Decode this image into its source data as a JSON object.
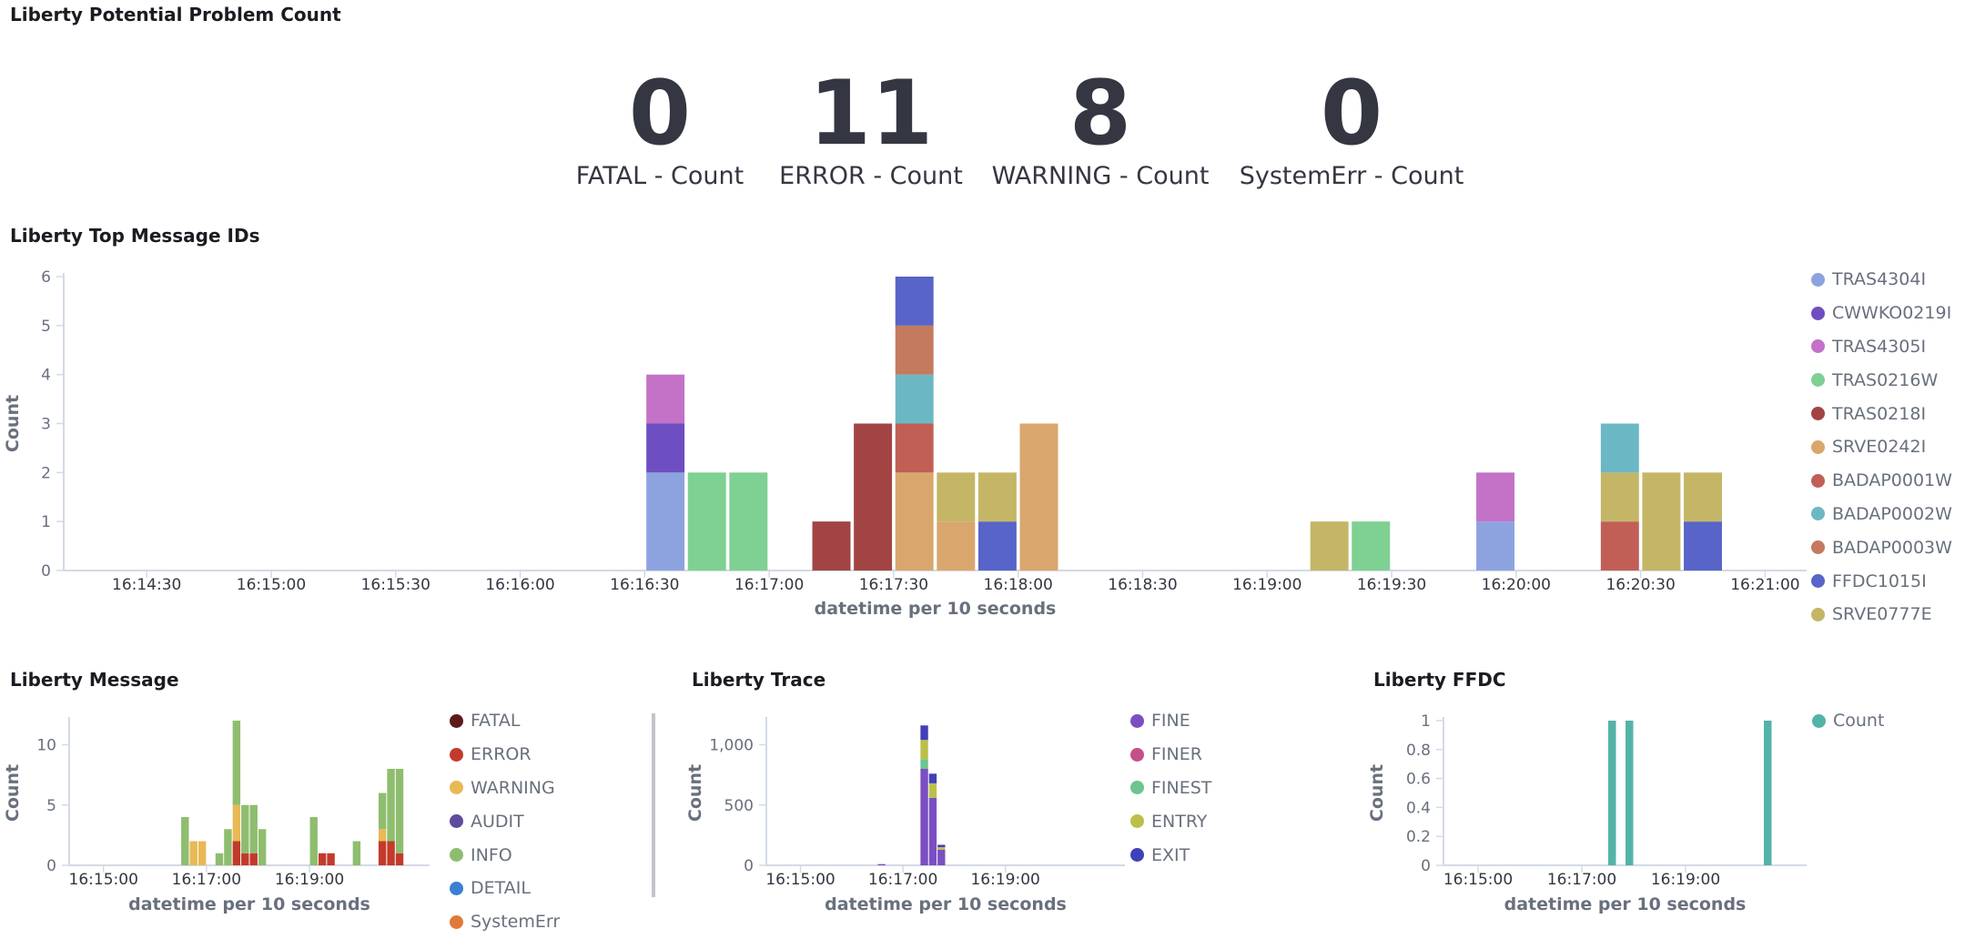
{
  "dashboard": {
    "problem_panel": {
      "title": "Liberty Potential Problem Count",
      "metrics": [
        {
          "value": "0",
          "label": "FATAL - Count"
        },
        {
          "value": "11",
          "label": "ERROR - Count"
        },
        {
          "value": "8",
          "label": "WARNING - Count"
        },
        {
          "value": "0",
          "label": "SystemErr - Count"
        }
      ]
    },
    "top_panel": {
      "title": "Liberty Top Message IDs",
      "legend": [
        {
          "name": "TRAS4304I",
          "color": "#8da3e0"
        },
        {
          "name": "CWWKO0219I",
          "color": "#6e4fc2"
        },
        {
          "name": "TRAS4305I",
          "color": "#c372c8"
        },
        {
          "name": "TRAS0216W",
          "color": "#7fd093"
        },
        {
          "name": "TRAS0218I",
          "color": "#a24443"
        },
        {
          "name": "SRVE0242I",
          "color": "#d9a66d"
        },
        {
          "name": "BADAP0001W",
          "color": "#c15f56"
        },
        {
          "name": "BADAP0002W",
          "color": "#6bb8c4"
        },
        {
          "name": "BADAP0003W",
          "color": "#c47a5e"
        },
        {
          "name": "FFDC1015I",
          "color": "#5864c7"
        },
        {
          "name": "SRVE0777E",
          "color": "#c4b666"
        }
      ]
    },
    "message_panel": {
      "title": "Liberty Message",
      "legend": [
        {
          "name": "FATAL",
          "color": "#5c1a1a"
        },
        {
          "name": "ERROR",
          "color": "#c23a2b"
        },
        {
          "name": "WARNING",
          "color": "#e8b954"
        },
        {
          "name": "AUDIT",
          "color": "#5e4b9c"
        },
        {
          "name": "INFO",
          "color": "#8fbd6f"
        },
        {
          "name": "DETAIL",
          "color": "#3b7fd1"
        },
        {
          "name": "SystemErr",
          "color": "#e07a3a"
        }
      ]
    },
    "trace_panel": {
      "title": "Liberty Trace",
      "legend": [
        {
          "name": "FINE",
          "color": "#7b4fc2"
        },
        {
          "name": "FINER",
          "color": "#c4508a"
        },
        {
          "name": "FINEST",
          "color": "#6fc48f"
        },
        {
          "name": "ENTRY",
          "color": "#bcc04a"
        },
        {
          "name": "EXIT",
          "color": "#4040b8"
        }
      ]
    },
    "ffdc_panel": {
      "title": "Liberty FFDC",
      "legend": [
        {
          "name": "Count",
          "color": "#54b3a8"
        }
      ]
    }
  },
  "chart_data": [
    {
      "id": "top",
      "type": "bar",
      "stacked": true,
      "xlabel": "datetime per 10 seconds",
      "ylabel": "Count",
      "ylim": [
        0,
        6
      ],
      "yticks": [
        "0",
        "1",
        "2",
        "3",
        "4",
        "5",
        "6"
      ],
      "xticks": [
        "16:14:30",
        "16:15:00",
        "16:15:30",
        "16:16:00",
        "16:16:30",
        "16:17:00",
        "16:17:30",
        "16:18:00",
        "16:18:30",
        "16:19:00",
        "16:19:30",
        "16:20:00",
        "16:20:30",
        "16:21:00"
      ],
      "x_range": [
        "16:14:10",
        "16:21:10"
      ],
      "bar_width_seconds": 10,
      "bars": [
        {
          "x": "16:16:30",
          "stack": [
            {
              "series": "TRAS4304I",
              "value": 2
            },
            {
              "series": "CWWKO0219I",
              "value": 1
            },
            {
              "series": "TRAS4305I",
              "value": 1
            }
          ]
        },
        {
          "x": "16:16:40",
          "stack": [
            {
              "series": "TRAS0216W",
              "value": 2
            }
          ]
        },
        {
          "x": "16:16:50",
          "stack": [
            {
              "series": "TRAS0216W",
              "value": 2
            }
          ]
        },
        {
          "x": "16:17:10",
          "stack": [
            {
              "series": "TRAS0218I",
              "value": 1
            }
          ]
        },
        {
          "x": "16:17:20",
          "stack": [
            {
              "series": "TRAS0218I",
              "value": 3
            }
          ]
        },
        {
          "x": "16:17:30",
          "stack": [
            {
              "series": "SRVE0242I",
              "value": 2
            },
            {
              "series": "BADAP0001W",
              "value": 1
            },
            {
              "series": "BADAP0002W",
              "value": 1
            },
            {
              "series": "BADAP0003W",
              "value": 1
            },
            {
              "series": "FFDC1015I",
              "value": 1
            }
          ]
        },
        {
          "x": "16:17:40",
          "stack": [
            {
              "series": "SRVE0242I",
              "value": 1
            },
            {
              "series": "SRVE0777E",
              "value": 1
            }
          ]
        },
        {
          "x": "16:17:50",
          "stack": [
            {
              "series": "FFDC1015I",
              "value": 1
            },
            {
              "series": "SRVE0777E",
              "value": 1
            }
          ]
        },
        {
          "x": "16:18:00",
          "stack": [
            {
              "series": "SRVE0242I",
              "value": 3
            }
          ]
        },
        {
          "x": "16:19:10",
          "stack": [
            {
              "series": "SRVE0777E",
              "value": 1
            }
          ]
        },
        {
          "x": "16:19:20",
          "stack": [
            {
              "series": "TRAS0216W",
              "value": 1
            }
          ]
        },
        {
          "x": "16:19:50",
          "stack": [
            {
              "series": "TRAS4304I",
              "value": 1
            },
            {
              "series": "TRAS4305I",
              "value": 1
            }
          ]
        },
        {
          "x": "16:20:20",
          "stack": [
            {
              "series": "BADAP0001W",
              "value": 1
            },
            {
              "series": "SRVE0777E",
              "value": 1
            },
            {
              "series": "BADAP0002W",
              "value": 1
            }
          ]
        },
        {
          "x": "16:20:30",
          "stack": [
            {
              "series": "SRVE0777E",
              "value": 2
            }
          ]
        },
        {
          "x": "16:20:40",
          "stack": [
            {
              "series": "FFDC1015I",
              "value": 1
            },
            {
              "series": "SRVE0777E",
              "value": 1
            }
          ]
        }
      ]
    },
    {
      "id": "message",
      "type": "bar",
      "stacked": true,
      "xlabel": "datetime per 10 seconds",
      "ylabel": "Count",
      "ylim": [
        0,
        12
      ],
      "yticks": [
        "0",
        "5",
        "10"
      ],
      "xticks": [
        "16:15:00",
        "16:17:00",
        "16:19:00"
      ],
      "x_range": [
        "16:14:20",
        "16:21:20"
      ],
      "bar_width_seconds": 10,
      "bars": [
        {
          "x": "16:16:30",
          "stack": [
            {
              "series": "INFO",
              "value": 4
            }
          ]
        },
        {
          "x": "16:16:40",
          "stack": [
            {
              "series": "WARNING",
              "value": 2
            }
          ]
        },
        {
          "x": "16:16:50",
          "stack": [
            {
              "series": "WARNING",
              "value": 2
            }
          ]
        },
        {
          "x": "16:17:10",
          "stack": [
            {
              "series": "INFO",
              "value": 1
            }
          ]
        },
        {
          "x": "16:17:20",
          "stack": [
            {
              "series": "INFO",
              "value": 3
            }
          ]
        },
        {
          "x": "16:17:30",
          "stack": [
            {
              "series": "ERROR",
              "value": 2
            },
            {
              "series": "WARNING",
              "value": 3
            },
            {
              "series": "INFO",
              "value": 7
            }
          ]
        },
        {
          "x": "16:17:40",
          "stack": [
            {
              "series": "ERROR",
              "value": 1
            },
            {
              "series": "INFO",
              "value": 4
            }
          ]
        },
        {
          "x": "16:17:50",
          "stack": [
            {
              "series": "ERROR",
              "value": 1
            },
            {
              "series": "INFO",
              "value": 4
            }
          ]
        },
        {
          "x": "16:18:00",
          "stack": [
            {
              "series": "INFO",
              "value": 3
            }
          ]
        },
        {
          "x": "16:19:00",
          "stack": [
            {
              "series": "INFO",
              "value": 4
            }
          ]
        },
        {
          "x": "16:19:10",
          "stack": [
            {
              "series": "ERROR",
              "value": 1
            }
          ]
        },
        {
          "x": "16:19:20",
          "stack": [
            {
              "series": "ERROR",
              "value": 1
            }
          ]
        },
        {
          "x": "16:19:50",
          "stack": [
            {
              "series": "INFO",
              "value": 2
            }
          ]
        },
        {
          "x": "16:20:20",
          "stack": [
            {
              "series": "ERROR",
              "value": 2
            },
            {
              "series": "WARNING",
              "value": 1
            },
            {
              "series": "INFO",
              "value": 3
            }
          ]
        },
        {
          "x": "16:20:30",
          "stack": [
            {
              "series": "ERROR",
              "value": 2
            },
            {
              "series": "INFO",
              "value": 6
            }
          ]
        },
        {
          "x": "16:20:40",
          "stack": [
            {
              "series": "ERROR",
              "value": 1
            },
            {
              "series": "INFO",
              "value": 7
            }
          ]
        }
      ]
    },
    {
      "id": "trace",
      "type": "bar",
      "stacked": true,
      "xlabel": "datetime per 10 seconds",
      "ylabel": "Count",
      "ylim": [
        0,
        1200
      ],
      "yticks": [
        "0",
        "500",
        "1,000"
      ],
      "xticks": [
        "16:15:00",
        "16:17:00",
        "16:19:00"
      ],
      "x_range": [
        "16:14:20",
        "16:21:20"
      ],
      "bar_width_seconds": 10,
      "bars": [
        {
          "x": "16:16:30",
          "stack": [
            {
              "series": "FINE",
              "value": 10
            }
          ]
        },
        {
          "x": "16:17:20",
          "stack": [
            {
              "series": "FINE",
              "value": 800
            },
            {
              "series": "FINEST",
              "value": 80
            },
            {
              "series": "ENTRY",
              "value": 160
            },
            {
              "series": "EXIT",
              "value": 120
            }
          ]
        },
        {
          "x": "16:17:30",
          "stack": [
            {
              "series": "FINE",
              "value": 560
            },
            {
              "series": "ENTRY",
              "value": 120
            },
            {
              "series": "EXIT",
              "value": 80
            }
          ]
        },
        {
          "x": "16:17:40",
          "stack": [
            {
              "series": "FINE",
              "value": 130
            },
            {
              "series": "ENTRY",
              "value": 20
            },
            {
              "series": "EXIT",
              "value": 20
            }
          ]
        }
      ]
    },
    {
      "id": "ffdc",
      "type": "bar",
      "stacked": false,
      "xlabel": "datetime per 10 seconds",
      "ylabel": "Count",
      "ylim": [
        0,
        1
      ],
      "yticks": [
        "0",
        "0.2",
        "0.4",
        "0.6",
        "0.8",
        "1"
      ],
      "xticks": [
        "16:15:00",
        "16:17:00",
        "16:19:00"
      ],
      "x_range": [
        "16:14:20",
        "16:21:20"
      ],
      "bar_width_seconds": 10,
      "bars": [
        {
          "x": "16:17:30",
          "stack": [
            {
              "series": "Count",
              "value": 1
            }
          ]
        },
        {
          "x": "16:17:50",
          "stack": [
            {
              "series": "Count",
              "value": 1
            }
          ]
        },
        {
          "x": "16:20:30",
          "stack": [
            {
              "series": "Count",
              "value": 1
            }
          ]
        }
      ]
    }
  ]
}
